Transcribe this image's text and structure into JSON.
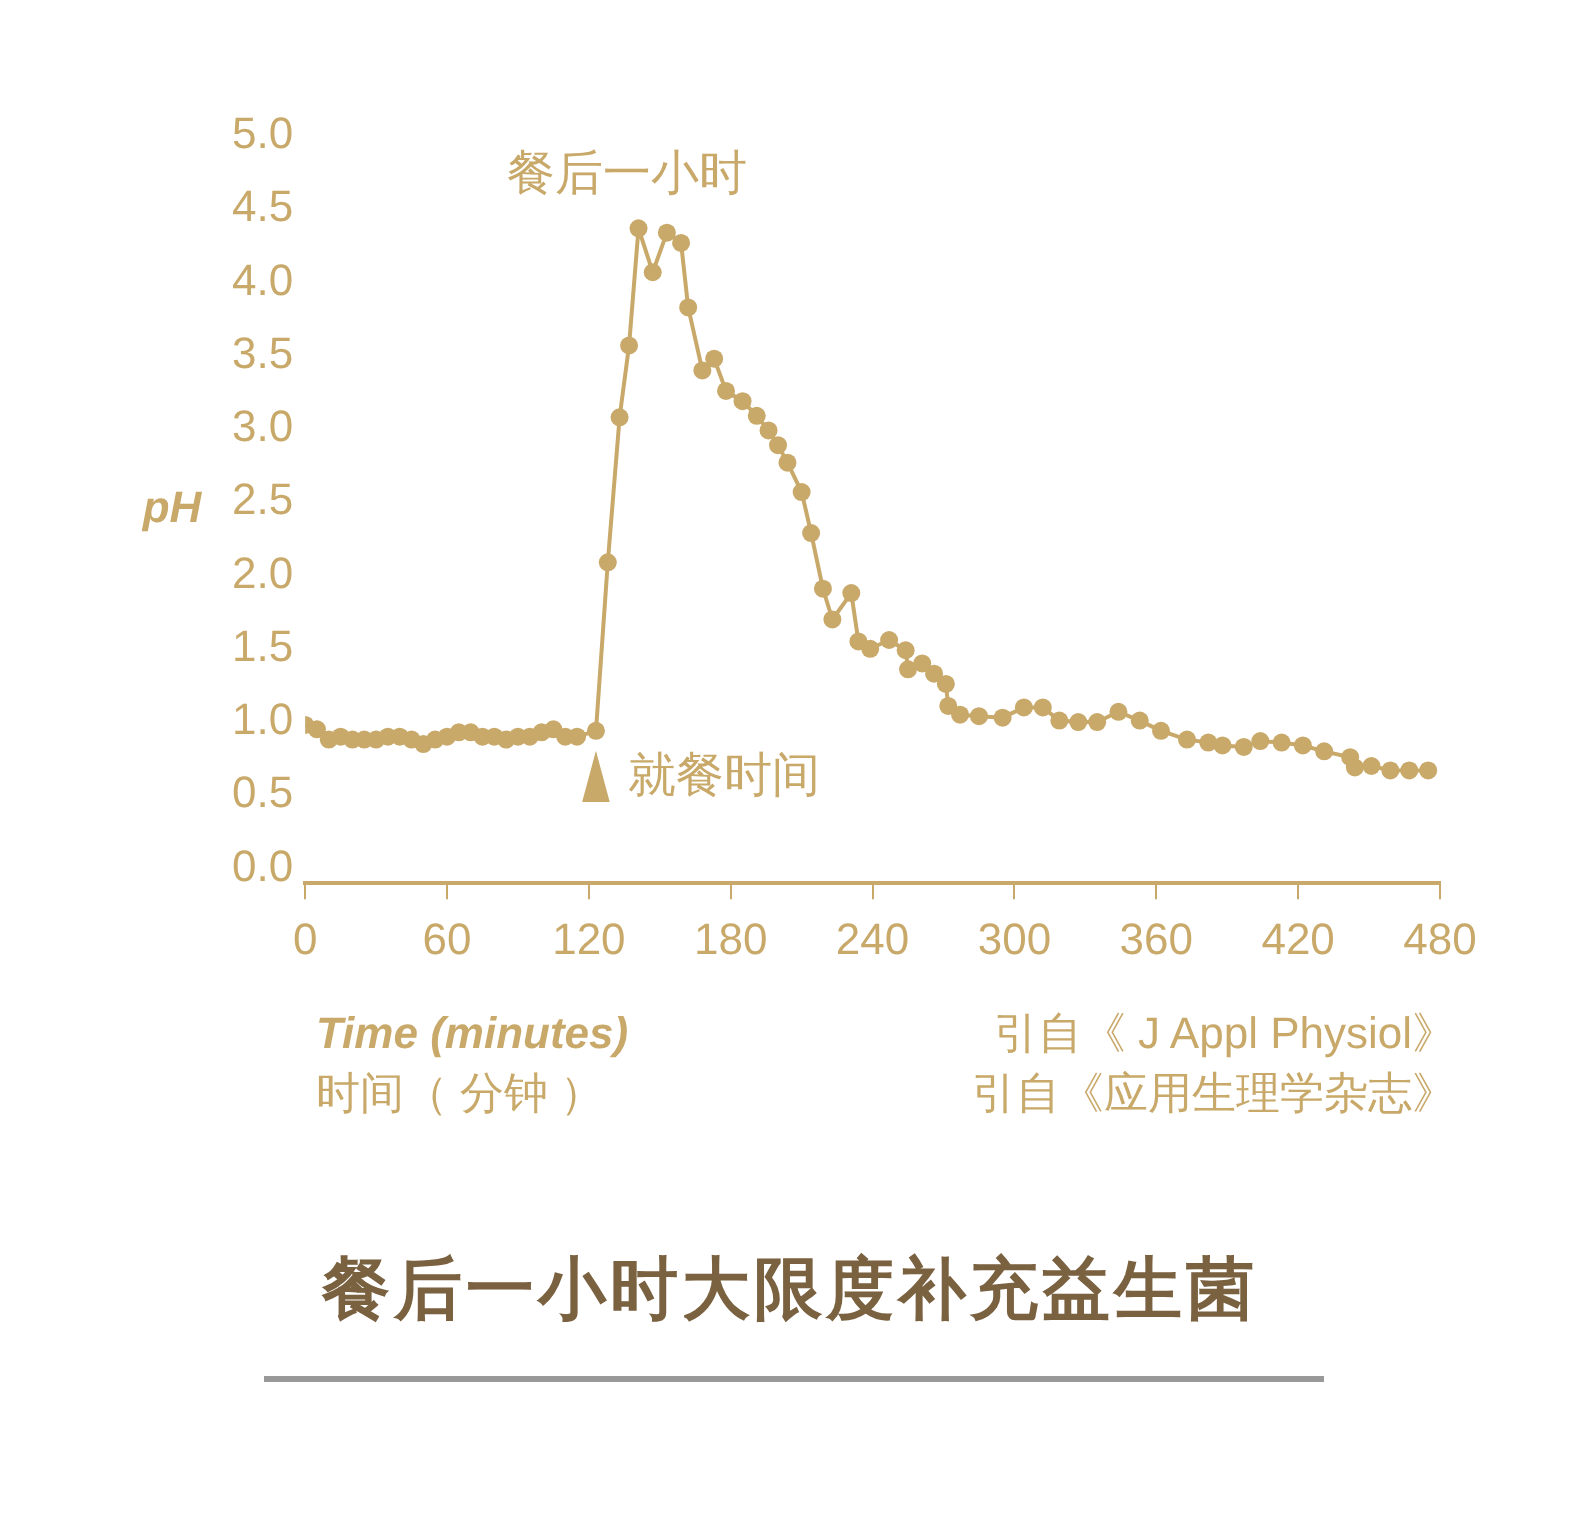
{
  "chart_data": {
    "type": "line",
    "title": "餐后一小时大限度补充益生菌",
    "xlabel": "Time (minutes)",
    "ylabel": "pH",
    "x": [
      0,
      5,
      10,
      15,
      20,
      25,
      30,
      35,
      40,
      45,
      50,
      55,
      60,
      65,
      70,
      75,
      80,
      85,
      90,
      95,
      100,
      105,
      110,
      115,
      123,
      128,
      133,
      137,
      141,
      147,
      153,
      159,
      162,
      168,
      173,
      178,
      185,
      191,
      196,
      200,
      204,
      210,
      214,
      219,
      223,
      231,
      234,
      239,
      247,
      254,
      255,
      261,
      266,
      271,
      272,
      277,
      285,
      295,
      304,
      312,
      319,
      327,
      335,
      344,
      353,
      362,
      373,
      382,
      388,
      397,
      404,
      413,
      422,
      431,
      442,
      444,
      451,
      459,
      467,
      475
    ],
    "series": [
      {
        "color": "#c8a96a",
        "values": [
          0.98,
          0.95,
          0.88,
          0.9,
          0.88,
          0.88,
          0.88,
          0.9,
          0.9,
          0.88,
          0.85,
          0.88,
          0.9,
          0.93,
          0.93,
          0.9,
          0.9,
          0.88,
          0.9,
          0.9,
          0.93,
          0.95,
          0.9,
          0.9,
          0.94,
          2.09,
          3.08,
          3.57,
          4.37,
          4.07,
          4.34,
          4.27,
          3.83,
          3.4,
          3.48,
          3.26,
          3.19,
          3.09,
          2.99,
          2.89,
          2.77,
          2.57,
          2.29,
          1.91,
          1.7,
          1.88,
          1.55,
          1.5,
          1.56,
          1.49,
          1.36,
          1.4,
          1.33,
          1.26,
          1.11,
          1.05,
          1.04,
          1.03,
          1.1,
          1.1,
          1.01,
          1.0,
          1.0,
          1.07,
          1.01,
          0.94,
          0.88,
          0.86,
          0.84,
          0.83,
          0.87,
          0.86,
          0.84,
          0.8,
          0.76,
          0.69,
          0.7,
          0.67,
          0.67,
          0.67
        ]
      }
    ],
    "xlim": [
      0,
      480
    ],
    "xticks": [
      0,
      60,
      120,
      180,
      240,
      300,
      360,
      420,
      480
    ],
    "ylim": [
      -0.1,
      5.0
    ],
    "yticks": [
      {
        "value": 0,
        "label": "0.0"
      },
      0.5,
      {
        "value": 1,
        "label": "1.0"
      },
      1.5,
      {
        "value": 2,
        "label": "2.0"
      },
      2.5,
      {
        "value": 3,
        "label": "3.0"
      },
      3.5,
      {
        "value": 4,
        "label": "4.0"
      },
      4.5,
      {
        "value": 5,
        "label": "5.0"
      }
    ],
    "marker": "circle",
    "line_style": "solid",
    "grid": false,
    "legend": false,
    "annotations": [
      {
        "text": "餐后一小时",
        "x": 141,
        "y": 4.37
      },
      {
        "text": "就餐时间",
        "x": 123,
        "y": 0.94
      },
      "时间（ 分钟 ）",
      "引自《 J Appl Physiol》",
      "引自《应用生理学杂志》"
    ]
  }
}
